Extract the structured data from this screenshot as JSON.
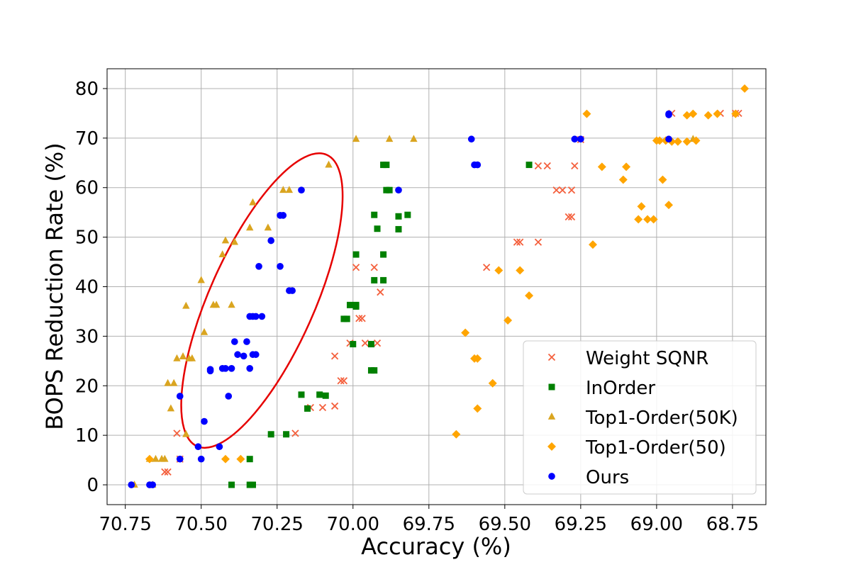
{
  "chart_data": {
    "type": "scatter",
    "title": "",
    "xlabel": "Accuracy (%)",
    "ylabel": "BOPS Reduction Rate (%)",
    "xlim": [
      70.81,
      68.64
    ],
    "ylim": [
      -4,
      84
    ],
    "x_inverted": true,
    "grid": true,
    "legend_position": "lower-right",
    "xticks": [
      70.75,
      70.5,
      70.25,
      70.0,
      69.75,
      69.5,
      69.25,
      69.0,
      68.75
    ],
    "xtick_labels": [
      "70.75",
      "70.50",
      "70.25",
      "70.00",
      "69.75",
      "69.50",
      "69.25",
      "69.00",
      "68.75"
    ],
    "yticks": [
      0,
      10,
      20,
      30,
      40,
      50,
      60,
      70,
      80
    ],
    "ytick_labels": [
      "0",
      "10",
      "20",
      "30",
      "40",
      "50",
      "60",
      "70",
      "80"
    ],
    "annotation": {
      "type": "ellipse",
      "color": "#e60000",
      "center": [
        70.3,
        37.2
      ],
      "description": "highlights Ours cluster"
    },
    "series": [
      {
        "name": "Weight SQNR",
        "marker": "x",
        "color": "#f4603d",
        "points": [
          [
            70.58,
            10.4
          ],
          [
            70.57,
            5.2
          ],
          [
            70.61,
            2.6
          ],
          [
            70.62,
            2.6
          ],
          [
            70.19,
            10.4
          ],
          [
            70.14,
            15.6
          ],
          [
            70.1,
            15.6
          ],
          [
            70.06,
            15.9
          ],
          [
            70.06,
            26.0
          ],
          [
            70.04,
            21.0
          ],
          [
            70.03,
            21.0
          ],
          [
            70.01,
            28.6
          ],
          [
            69.96,
            28.6
          ],
          [
            69.92,
            28.6
          ],
          [
            69.97,
            33.6
          ],
          [
            69.98,
            33.6
          ],
          [
            69.99,
            43.9
          ],
          [
            69.93,
            43.9
          ],
          [
            69.91,
            38.9
          ],
          [
            69.56,
            43.9
          ],
          [
            69.46,
            49.0
          ],
          [
            69.45,
            49.0
          ],
          [
            69.39,
            49.0
          ],
          [
            69.39,
            64.4
          ],
          [
            69.36,
            64.4
          ],
          [
            69.31,
            59.5
          ],
          [
            69.33,
            59.5
          ],
          [
            69.28,
            59.5
          ],
          [
            69.29,
            54.1
          ],
          [
            69.28,
            54.1
          ],
          [
            69.27,
            64.4
          ],
          [
            69.25,
            69.7
          ],
          [
            68.95,
            75.0
          ],
          [
            68.79,
            75.0
          ],
          [
            68.74,
            75.0
          ],
          [
            68.73,
            75.0
          ]
        ]
      },
      {
        "name": "InOrder",
        "marker": "square",
        "color": "#008000",
        "points": [
          [
            70.34,
            5.2
          ],
          [
            70.4,
            0.0
          ],
          [
            70.34,
            0.0
          ],
          [
            70.33,
            0.0
          ],
          [
            70.27,
            10.2
          ],
          [
            70.22,
            10.2
          ],
          [
            70.17,
            18.2
          ],
          [
            70.15,
            15.4
          ],
          [
            70.11,
            18.2
          ],
          [
            70.09,
            18.0
          ],
          [
            70.03,
            33.5
          ],
          [
            70.02,
            33.5
          ],
          [
            69.99,
            36.3
          ],
          [
            69.99,
            36.0
          ],
          [
            70.0,
            28.4
          ],
          [
            70.01,
            36.3
          ],
          [
            69.93,
            23.1
          ],
          [
            69.94,
            23.1
          ],
          [
            69.94,
            28.4
          ],
          [
            69.93,
            41.3
          ],
          [
            69.9,
            41.3
          ],
          [
            69.99,
            46.5
          ],
          [
            69.9,
            46.5
          ],
          [
            69.92,
            51.7
          ],
          [
            69.85,
            51.6
          ],
          [
            69.93,
            54.5
          ],
          [
            69.85,
            54.2
          ],
          [
            69.82,
            54.5
          ],
          [
            69.89,
            59.5
          ],
          [
            69.88,
            59.5
          ],
          [
            69.9,
            64.6
          ],
          [
            69.89,
            64.6
          ],
          [
            69.42,
            64.6
          ]
        ]
      },
      {
        "name": "Top1-Order(50K)",
        "marker": "triangle",
        "color": "#daa520",
        "points": [
          [
            70.72,
            0.0
          ],
          [
            70.66,
            0.0
          ],
          [
            70.67,
            5.2
          ],
          [
            70.65,
            5.2
          ],
          [
            70.62,
            5.2
          ],
          [
            70.63,
            5.2
          ],
          [
            70.55,
            10.2
          ],
          [
            70.6,
            15.4
          ],
          [
            70.61,
            20.5
          ],
          [
            70.59,
            20.5
          ],
          [
            70.58,
            25.5
          ],
          [
            70.56,
            25.9
          ],
          [
            70.54,
            25.5
          ],
          [
            70.53,
            25.5
          ],
          [
            70.55,
            36.1
          ],
          [
            70.49,
            30.8
          ],
          [
            70.46,
            36.3
          ],
          [
            70.45,
            36.3
          ],
          [
            70.4,
            36.3
          ],
          [
            70.5,
            41.3
          ],
          [
            70.43,
            46.5
          ],
          [
            70.42,
            49.3
          ],
          [
            70.39,
            49.0
          ],
          [
            70.34,
            51.9
          ],
          [
            70.33,
            57.0
          ],
          [
            70.28,
            51.9
          ],
          [
            70.21,
            59.5
          ],
          [
            70.23,
            59.5
          ],
          [
            70.08,
            64.6
          ],
          [
            69.99,
            69.8
          ],
          [
            69.88,
            69.8
          ],
          [
            69.8,
            69.8
          ],
          [
            68.88,
            69.8
          ]
        ]
      },
      {
        "name": "Top1-Order(50)",
        "marker": "diamond",
        "color": "#ffa500",
        "points": [
          [
            70.67,
            5.2
          ],
          [
            70.42,
            5.2
          ],
          [
            70.37,
            5.2
          ],
          [
            69.66,
            10.2
          ],
          [
            69.63,
            30.7
          ],
          [
            69.6,
            25.5
          ],
          [
            69.59,
            25.5
          ],
          [
            69.59,
            15.4
          ],
          [
            69.54,
            20.5
          ],
          [
            69.52,
            43.3
          ],
          [
            69.49,
            33.2
          ],
          [
            69.45,
            43.3
          ],
          [
            69.42,
            38.2
          ],
          [
            69.21,
            48.5
          ],
          [
            69.18,
            64.2
          ],
          [
            69.23,
            74.9
          ],
          [
            69.11,
            61.6
          ],
          [
            69.1,
            64.2
          ],
          [
            69.05,
            56.2
          ],
          [
            69.06,
            53.6
          ],
          [
            69.03,
            53.6
          ],
          [
            69.01,
            53.6
          ],
          [
            69.0,
            69.5
          ],
          [
            68.99,
            69.5
          ],
          [
            68.98,
            61.6
          ],
          [
            68.96,
            56.5
          ],
          [
            68.97,
            69.5
          ],
          [
            68.95,
            69.3
          ],
          [
            68.93,
            69.3
          ],
          [
            68.9,
            69.3
          ],
          [
            68.87,
            69.5
          ],
          [
            68.9,
            74.6
          ],
          [
            68.88,
            74.9
          ],
          [
            68.83,
            74.6
          ],
          [
            68.8,
            74.9
          ],
          [
            68.74,
            74.9
          ],
          [
            68.71,
            80.0
          ]
        ]
      },
      {
        "name": "Ours",
        "marker": "circle",
        "color": "#0000ff",
        "points": [
          [
            70.73,
            0.0
          ],
          [
            70.67,
            0.0
          ],
          [
            70.66,
            0.0
          ],
          [
            70.57,
            5.2
          ],
          [
            70.5,
            5.2
          ],
          [
            70.51,
            7.7
          ],
          [
            70.44,
            7.7
          ],
          [
            70.49,
            12.8
          ],
          [
            70.57,
            17.9
          ],
          [
            70.41,
            17.9
          ],
          [
            70.47,
            23.0
          ],
          [
            70.47,
            23.3
          ],
          [
            70.43,
            23.5
          ],
          [
            70.42,
            23.5
          ],
          [
            70.4,
            23.5
          ],
          [
            70.34,
            23.5
          ],
          [
            70.38,
            26.3
          ],
          [
            70.36,
            26.0
          ],
          [
            70.33,
            26.3
          ],
          [
            70.32,
            26.3
          ],
          [
            70.39,
            28.9
          ],
          [
            70.35,
            28.9
          ],
          [
            70.34,
            34.0
          ],
          [
            70.33,
            34.0
          ],
          [
            70.32,
            34.0
          ],
          [
            70.3,
            34.0
          ],
          [
            70.31,
            44.1
          ],
          [
            70.24,
            44.1
          ],
          [
            70.27,
            49.3
          ],
          [
            70.24,
            54.4
          ],
          [
            70.23,
            54.4
          ],
          [
            70.21,
            39.2
          ],
          [
            70.2,
            39.2
          ],
          [
            70.17,
            59.5
          ],
          [
            69.85,
            59.5
          ],
          [
            69.61,
            69.8
          ],
          [
            69.6,
            64.6
          ],
          [
            69.59,
            64.6
          ],
          [
            69.27,
            69.8
          ],
          [
            69.25,
            69.8
          ],
          [
            68.96,
            74.9
          ],
          [
            68.96,
            74.7
          ],
          [
            68.96,
            69.8
          ]
        ]
      }
    ]
  }
}
